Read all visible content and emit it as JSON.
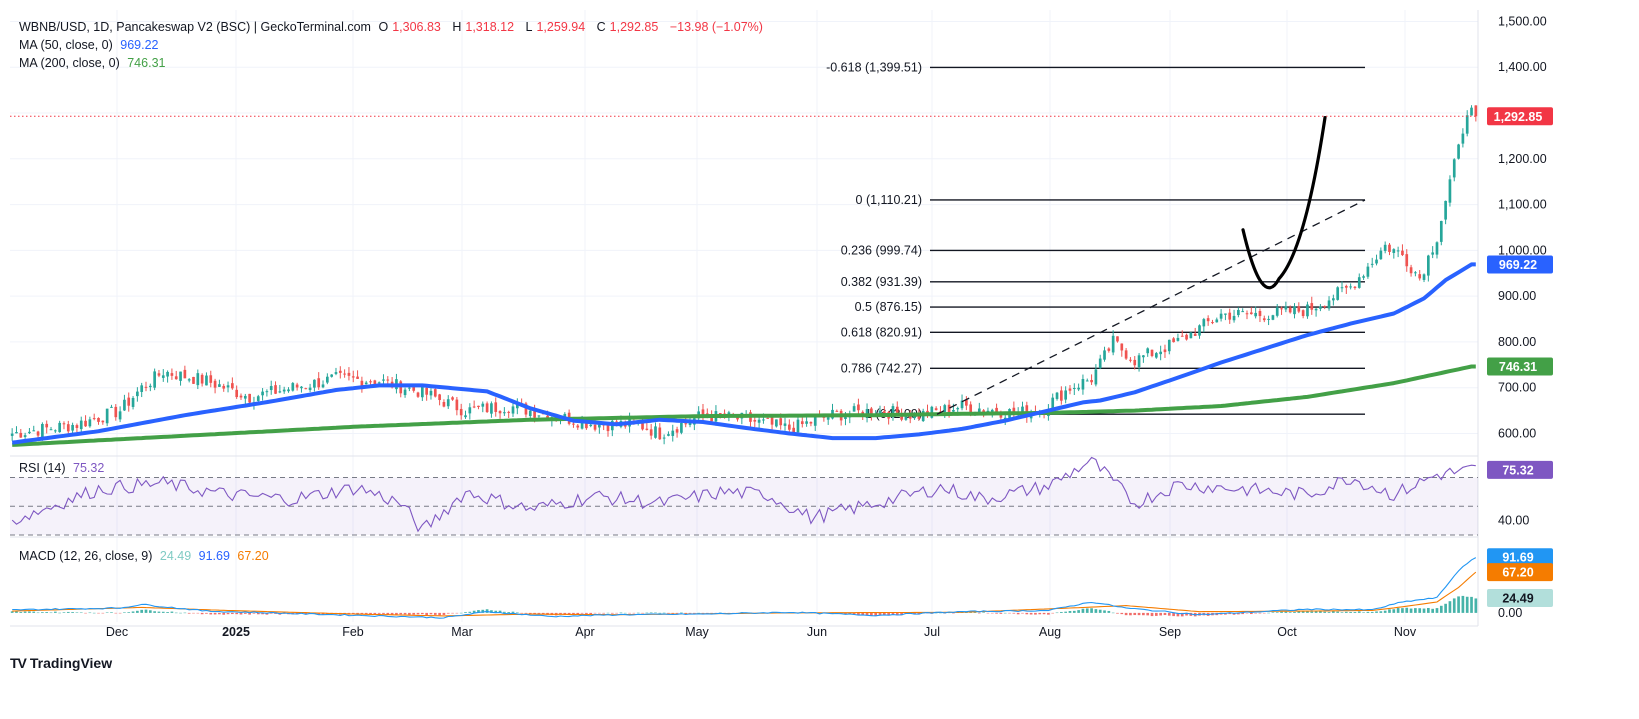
{
  "header": {
    "symbol": "WBNB/USD, 1D, Pancakeswap V2 (BSC) | GeckoTerminal.com",
    "o_label": "O",
    "o_value": "1,306.83",
    "h_label": "H",
    "h_value": "1,318.12",
    "l_label": "L",
    "l_value": "1,259.94",
    "c_label": "C",
    "c_value": "1,292.85",
    "change": "−13.98 (−1.07%)",
    "ma50_label": "MA (50, close, 0)",
    "ma50_value": "969.22",
    "ma200_label": "MA (200, close, 0)",
    "ma200_value": "746.31",
    "rsi_label": "RSI (14)",
    "rsi_value": "75.32",
    "macd_label": "MACD (12, 26, close, 9)",
    "macd_hist_value": "24.49",
    "macd_value": "91.69",
    "macd_signal_value": "67.20"
  },
  "brand": {
    "mark": "TV",
    "name": "TradingView"
  },
  "colors": {
    "up": "#26a69a",
    "down": "#ef5350",
    "ma50": "#2962ff",
    "ma200": "#43a047",
    "rsi": "#7e57c2",
    "macd": "#2196f3",
    "signal": "#f57c00",
    "price_line": "#f23645"
  },
  "chart_data": [
    {
      "type": "candlestick",
      "title": "WBNB/USD, 1D, Pancakeswap V2 (BSC) | GeckoTerminal.com",
      "x_ticks": [
        "Dec",
        "2025",
        "Feb",
        "Mar",
        "Apr",
        "May",
        "Jun",
        "Jul",
        "Aug",
        "Sep",
        "Oct",
        "Nov"
      ],
      "y_ticks": [
        "600.00",
        "700.00",
        "800.00",
        "900.00",
        "1,000.00",
        "1,100.00",
        "1,200.00",
        "1,300.00",
        "1,400.00",
        "1,500.00"
      ],
      "ylim": [
        553,
        1525
      ],
      "last_price": 1292.85,
      "last_price_label": "1,292.85",
      "series": [
        {
          "name": "MA (50, close, 0)",
          "last_label": "969.22",
          "points": [
            [
              0,
              580
            ],
            [
              20,
              605
            ],
            [
              40,
              640
            ],
            [
              60,
              670
            ],
            [
              75,
              695
            ],
            [
              85,
              705
            ],
            [
              95,
              705
            ],
            [
              110,
              692
            ],
            [
              120,
              655
            ],
            [
              130,
              628
            ],
            [
              140,
              620
            ],
            [
              150,
              630
            ],
            [
              160,
              625
            ],
            [
              170,
              612
            ],
            [
              180,
              600
            ],
            [
              190,
              590
            ],
            [
              200,
              590
            ],
            [
              210,
              598
            ],
            [
              220,
              610
            ],
            [
              230,
              628
            ],
            [
              240,
              650
            ],
            [
              248,
              668
            ],
            [
              252,
              672
            ],
            [
              260,
              690
            ],
            [
              270,
              722
            ],
            [
              280,
              755
            ],
            [
              290,
              785
            ],
            [
              300,
              815
            ],
            [
              310,
              840
            ],
            [
              320,
              862
            ],
            [
              327,
              895
            ],
            [
              332,
              935
            ],
            [
              338,
              969.22
            ]
          ]
        },
        {
          "name": "MA (200, close, 0)",
          "last_label": "746.31",
          "points": [
            [
              0,
              575
            ],
            [
              40,
              595
            ],
            [
              80,
              615
            ],
            [
              120,
              630
            ],
            [
              160,
              638
            ],
            [
              200,
              640
            ],
            [
              220,
              643
            ],
            [
              240,
              645
            ],
            [
              260,
              650
            ],
            [
              280,
              660
            ],
            [
              300,
              680
            ],
            [
              320,
              710
            ],
            [
              338,
              746.31
            ]
          ]
        }
      ],
      "fibonacci": [
        {
          "level": "-0.618",
          "label": "-0.618 (1,399.51)",
          "price": 1399.51
        },
        {
          "level": "0",
          "label": "0 (1,110.21)",
          "price": 1110.21
        },
        {
          "level": "0.236",
          "label": "0.236 (999.74)",
          "price": 999.74
        },
        {
          "level": "0.382",
          "label": "0.382 (931.39)",
          "price": 931.39
        },
        {
          "level": "0.5",
          "label": "0.5 (876.15)",
          "price": 876.15
        },
        {
          "level": "0.618",
          "label": "0.618 (820.91)",
          "price": 820.91
        },
        {
          "level": "0.786",
          "label": "0.786 (742.27)",
          "price": 742.27
        },
        {
          "level": "1",
          "label": "1 (642.09)",
          "price": 642.09
        }
      ]
    },
    {
      "type": "line",
      "name": "RSI (14)",
      "ylim": [
        30,
        85
      ],
      "bands": [
        70,
        50,
        30
      ],
      "y_ticks": [
        "40.00"
      ],
      "last_label": "75.32",
      "values": [
        [
          0,
          40
        ],
        [
          20,
          62
        ],
        [
          35,
          66
        ],
        [
          50,
          58
        ],
        [
          65,
          55
        ],
        [
          80,
          63
        ],
        [
          90,
          52
        ],
        [
          95,
          33
        ],
        [
          105,
          60
        ],
        [
          120,
          48
        ],
        [
          135,
          57
        ],
        [
          150,
          52
        ],
        [
          165,
          60
        ],
        [
          175,
          58
        ],
        [
          185,
          42
        ],
        [
          200,
          52
        ],
        [
          215,
          63
        ],
        [
          225,
          55
        ],
        [
          240,
          64
        ],
        [
          250,
          82
        ],
        [
          260,
          52
        ],
        [
          270,
          65
        ],
        [
          285,
          62
        ],
        [
          300,
          58
        ],
        [
          310,
          70
        ],
        [
          320,
          58
        ],
        [
          330,
          72
        ],
        [
          338,
          75.32
        ]
      ]
    },
    {
      "type": "bar+line",
      "name": "MACD (12, 26, close, 9)",
      "ylim": [
        -15,
        120
      ],
      "y_ticks": [
        "0.00"
      ],
      "series": [
        {
          "name": "histogram",
          "last_label": "24.49"
        },
        {
          "name": "MACD",
          "last_label": "91.69"
        },
        {
          "name": "signal",
          "last_label": "67.20"
        }
      ]
    }
  ]
}
